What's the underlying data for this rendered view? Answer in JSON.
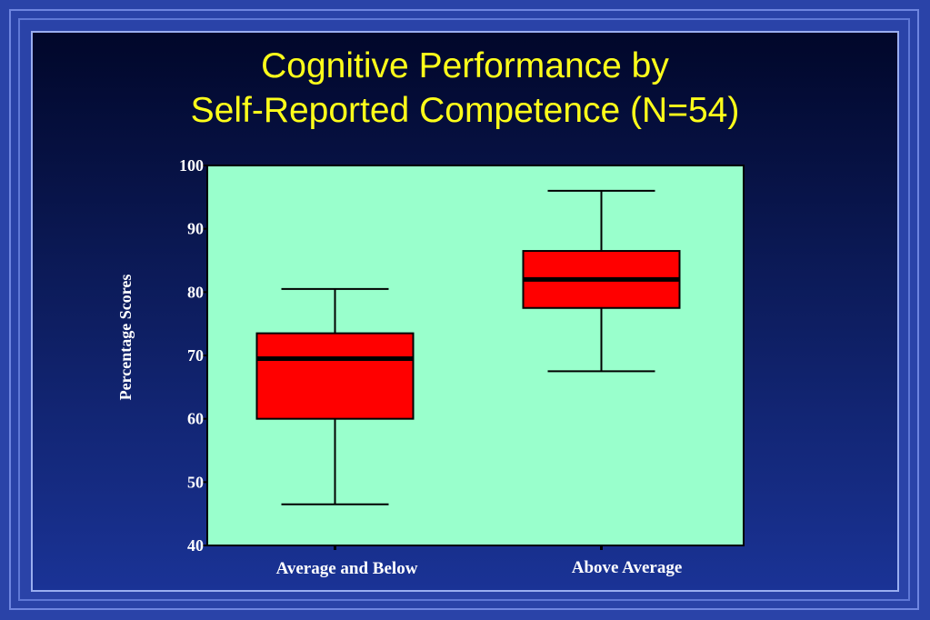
{
  "title_line1": "Cognitive Performance by",
  "title_line2": "Self-Reported Competence (N=54)",
  "colors": {
    "plot_background": "#99ffcc",
    "box_fill": "#ff0000",
    "axis_text": "#ffffff",
    "title_text": "#ffff1a"
  },
  "chart_data": {
    "type": "box",
    "title": "Cognitive Performance by Self-Reported Competence (N=54)",
    "ylabel": "Percentage Scores",
    "xlabel": "",
    "ylim": [
      40,
      100
    ],
    "yticks": [
      40,
      50,
      60,
      70,
      80,
      90,
      100
    ],
    "grid": false,
    "categories": [
      "Average and Below",
      "Above Average"
    ],
    "boxes": [
      {
        "category": "Average and Below",
        "min": 46.5,
        "q1": 60,
        "median": 69.5,
        "q3": 73.5,
        "max": 80.5
      },
      {
        "category": "Above Average",
        "min": 67.5,
        "q1": 77.5,
        "median": 82,
        "q3": 86.5,
        "max": 96
      }
    ]
  }
}
